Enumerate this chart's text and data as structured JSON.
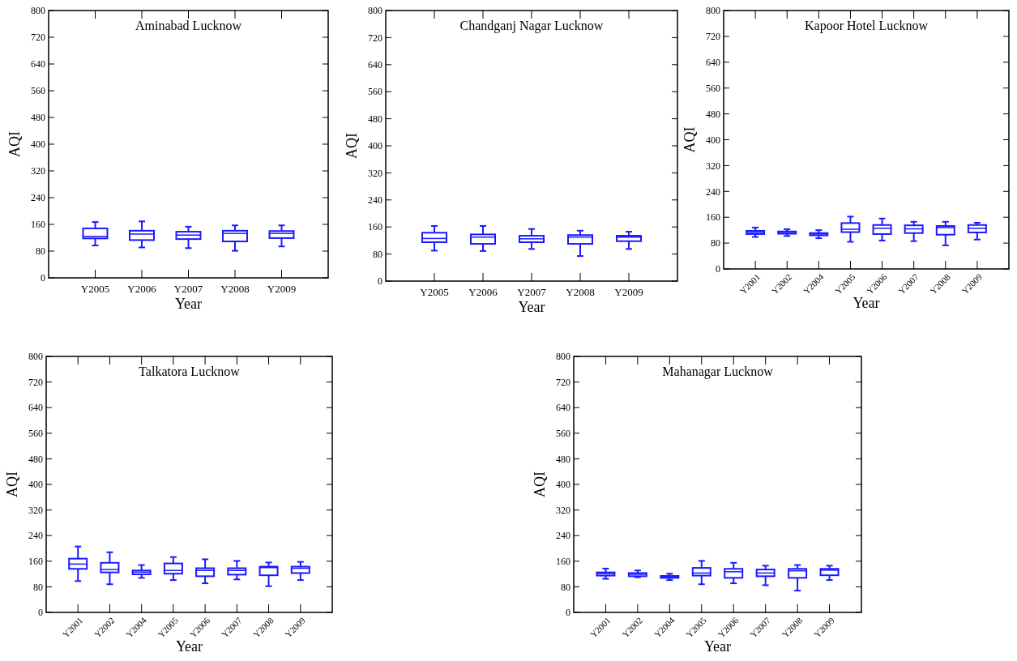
{
  "chart_data": [
    {
      "type": "box",
      "title": "Aminabad Lucknow",
      "xlabel": "Year",
      "ylabel": "AQI",
      "color": "#1a1aff",
      "categories": [
        "Y2005",
        "Y2006",
        "Y2007",
        "Y2008",
        "Y2009"
      ],
      "ylim": [
        0,
        800
      ],
      "yticks": [
        0,
        80,
        160,
        240,
        320,
        400,
        480,
        560,
        640,
        720,
        800
      ],
      "grid": false,
      "boxes": [
        {
          "low": 97,
          "q1": 118,
          "median": 124,
          "q3": 148,
          "high": 167
        },
        {
          "low": 91,
          "q1": 113,
          "median": 131,
          "q3": 141,
          "high": 169
        },
        {
          "low": 89,
          "q1": 116,
          "median": 128,
          "q3": 138,
          "high": 153
        },
        {
          "low": 81,
          "q1": 109,
          "median": 133,
          "q3": 141,
          "high": 157
        },
        {
          "low": 94,
          "q1": 119,
          "median": 133,
          "q3": 140,
          "high": 157
        }
      ]
    },
    {
      "type": "box",
      "title": "Chandganj Nagar Lucknow",
      "xlabel": "Year",
      "ylabel": "AQI",
      "color": "#1a1aff",
      "categories": [
        "Y2005",
        "Y2006",
        "Y2007",
        "Y2008",
        "Y2009"
      ],
      "ylim": [
        0,
        800
      ],
      "yticks": [
        0,
        80,
        160,
        240,
        320,
        400,
        480,
        560,
        640,
        720,
        800
      ],
      "grid": false,
      "boxes": [
        {
          "low": 90,
          "q1": 115,
          "median": 126,
          "q3": 143,
          "high": 163
        },
        {
          "low": 89,
          "q1": 110,
          "median": 130,
          "q3": 138,
          "high": 163
        },
        {
          "low": 95,
          "q1": 115,
          "median": 125,
          "q3": 134,
          "high": 154
        },
        {
          "low": 74,
          "q1": 110,
          "median": 130,
          "q3": 136,
          "high": 149
        },
        {
          "low": 95,
          "q1": 118,
          "median": 130,
          "q3": 134,
          "high": 146
        }
      ]
    },
    {
      "type": "box",
      "title": "Kapoor Hotel Lucknow",
      "xlabel": "Year",
      "ylabel": "AQI",
      "color": "#1a1aff",
      "categories": [
        "Y2001",
        "Y2002",
        "Y2004",
        "Y2005",
        "Y2006",
        "Y2007",
        "Y2008",
        "Y2009"
      ],
      "ylim": [
        0,
        800
      ],
      "yticks": [
        0,
        80,
        160,
        240,
        320,
        400,
        480,
        560,
        640,
        720,
        800
      ],
      "grid": false,
      "boxes": [
        {
          "low": 99,
          "q1": 108,
          "median": 113,
          "q3": 118,
          "high": 128
        },
        {
          "low": 102,
          "q1": 109,
          "median": 113,
          "q3": 116,
          "high": 123
        },
        {
          "low": 95,
          "q1": 104,
          "median": 108,
          "q3": 111,
          "high": 120
        },
        {
          "low": 84,
          "q1": 114,
          "median": 123,
          "q3": 142,
          "high": 162
        },
        {
          "low": 88,
          "q1": 108,
          "median": 126,
          "q3": 136,
          "high": 156
        },
        {
          "low": 86,
          "q1": 111,
          "median": 124,
          "q3": 135,
          "high": 146
        },
        {
          "low": 73,
          "q1": 106,
          "median": 128,
          "q3": 133,
          "high": 146
        },
        {
          "low": 91,
          "q1": 113,
          "median": 126,
          "q3": 136,
          "high": 143
        }
      ]
    },
    {
      "type": "box",
      "title": "Talkatora Lucknow",
      "xlabel": "Year",
      "ylabel": "AQI",
      "color": "#1a1aff",
      "categories": [
        "Y2001",
        "Y2002",
        "Y2004",
        "Y2005",
        "Y2006",
        "Y2007",
        "Y2008",
        "Y2009"
      ],
      "ylim": [
        0,
        800
      ],
      "yticks": [
        0,
        80,
        160,
        240,
        320,
        400,
        480,
        560,
        640,
        720,
        800
      ],
      "grid": false,
      "boxes": [
        {
          "low": 98,
          "q1": 136,
          "median": 151,
          "q3": 168,
          "high": 206
        },
        {
          "low": 88,
          "q1": 125,
          "median": 134,
          "q3": 155,
          "high": 188
        },
        {
          "low": 108,
          "q1": 119,
          "median": 126,
          "q3": 131,
          "high": 148
        },
        {
          "low": 101,
          "q1": 121,
          "median": 131,
          "q3": 153,
          "high": 173
        },
        {
          "low": 91,
          "q1": 113,
          "median": 131,
          "q3": 138,
          "high": 166
        },
        {
          "low": 103,
          "q1": 118,
          "median": 131,
          "q3": 138,
          "high": 161
        },
        {
          "low": 82,
          "q1": 116,
          "median": 140,
          "q3": 143,
          "high": 156
        },
        {
          "low": 101,
          "q1": 123,
          "median": 138,
          "q3": 143,
          "high": 158
        }
      ]
    },
    {
      "type": "box",
      "title": "Mahanagar Lucknow",
      "xlabel": "Year",
      "ylabel": "AQI",
      "color": "#1a1aff",
      "categories": [
        "Y2001",
        "Y2002",
        "Y2004",
        "Y2005",
        "Y2006",
        "Y2007",
        "Y2008",
        "Y2009"
      ],
      "ylim": [
        0,
        800
      ],
      "yticks": [
        0,
        80,
        160,
        240,
        320,
        400,
        480,
        560,
        640,
        720,
        800
      ],
      "grid": false,
      "boxes": [
        {
          "low": 105,
          "q1": 115,
          "median": 121,
          "q3": 125,
          "high": 137
        },
        {
          "low": 110,
          "q1": 113,
          "median": 119,
          "q3": 123,
          "high": 131
        },
        {
          "low": 101,
          "q1": 108,
          "median": 111,
          "q3": 114,
          "high": 121
        },
        {
          "low": 88,
          "q1": 115,
          "median": 123,
          "q3": 139,
          "high": 161
        },
        {
          "low": 91,
          "q1": 108,
          "median": 127,
          "q3": 136,
          "high": 155
        },
        {
          "low": 85,
          "q1": 113,
          "median": 123,
          "q3": 134,
          "high": 146
        },
        {
          "low": 68,
          "q1": 108,
          "median": 130,
          "q3": 136,
          "high": 148
        },
        {
          "low": 101,
          "q1": 116,
          "median": 132,
          "q3": 136,
          "high": 146
        }
      ]
    }
  ]
}
